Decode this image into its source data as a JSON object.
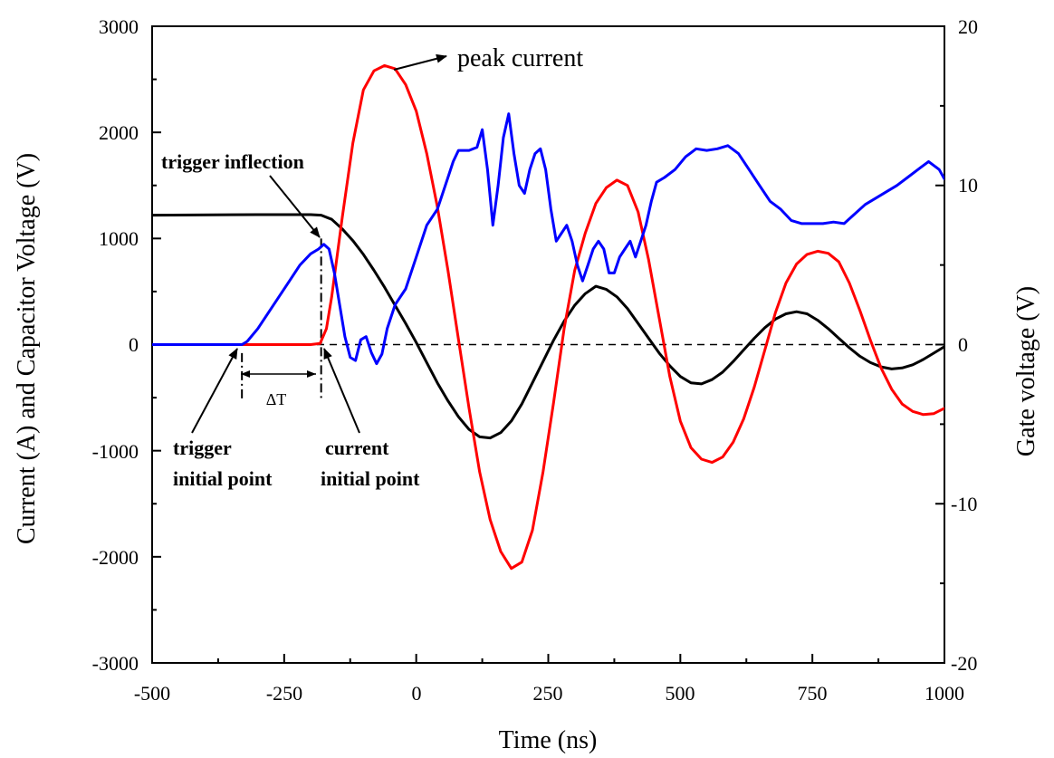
{
  "chart_data": {
    "type": "line",
    "title": "",
    "xlabel": "Time (ns)",
    "ylabel_left": "Current (A) and Capacitor Voltage (V)",
    "ylabel_right": "Gate voltage (V)",
    "xlim": [
      -500,
      1000
    ],
    "ylim_left": [
      -3000,
      3000
    ],
    "ylim_right": [
      -20,
      20
    ],
    "grid": false,
    "x_ticks": [
      -500,
      -250,
      0,
      250,
      500,
      750,
      1000
    ],
    "y_left_ticks": [
      -3000,
      -2000,
      -1000,
      0,
      1000,
      2000,
      3000
    ],
    "y_right_ticks": [
      -20,
      -10,
      0,
      10,
      20
    ],
    "tick_labels": {
      "x": [
        "-500",
        "-250",
        "0",
        "250",
        "500",
        "750",
        "1000"
      ],
      "y_left": [
        "-3000",
        "-2000",
        "-1000",
        "0",
        "1000",
        "2000",
        "3000"
      ],
      "y_right": [
        "-20",
        "-10",
        "0",
        "10",
        "20"
      ]
    },
    "series": [
      {
        "name": "Capacitor voltage",
        "axis": "left",
        "color": "#000000",
        "x": [
          -500,
          -300,
          -200,
          -180,
          -160,
          -140,
          -120,
          -100,
          -80,
          -60,
          -40,
          -20,
          0,
          20,
          40,
          60,
          80,
          100,
          120,
          140,
          160,
          180,
          200,
          220,
          240,
          260,
          280,
          300,
          320,
          340,
          360,
          380,
          400,
          420,
          440,
          460,
          480,
          500,
          520,
          540,
          560,
          580,
          600,
          620,
          640,
          660,
          680,
          700,
          720,
          740,
          760,
          780,
          800,
          820,
          840,
          860,
          880,
          900,
          920,
          940,
          960,
          980,
          1000
        ],
        "y": [
          1220,
          1225,
          1225,
          1220,
          1180,
          1090,
          980,
          850,
          700,
          540,
          370,
          200,
          20,
          -170,
          -360,
          -530,
          -680,
          -800,
          -870,
          -880,
          -830,
          -720,
          -560,
          -360,
          -160,
          40,
          220,
          370,
          480,
          550,
          520,
          450,
          340,
          200,
          60,
          -80,
          -200,
          -300,
          -360,
          -370,
          -330,
          -260,
          -160,
          -50,
          60,
          160,
          240,
          290,
          310,
          290,
          230,
          150,
          60,
          -30,
          -110,
          -170,
          -210,
          -230,
          -220,
          -190,
          -140,
          -80,
          -20
        ]
      },
      {
        "name": "Current",
        "axis": "left",
        "color": "#ff0000",
        "x": [
          -500,
          -300,
          -200,
          -182,
          -170,
          -160,
          -140,
          -120,
          -100,
          -80,
          -60,
          -40,
          -20,
          0,
          20,
          40,
          60,
          80,
          100,
          120,
          140,
          160,
          180,
          200,
          220,
          240,
          260,
          280,
          300,
          320,
          340,
          360,
          380,
          400,
          420,
          440,
          460,
          480,
          500,
          520,
          540,
          560,
          580,
          600,
          620,
          640,
          660,
          680,
          700,
          720,
          740,
          760,
          780,
          800,
          820,
          840,
          860,
          880,
          900,
          920,
          940,
          960,
          980,
          1000
        ],
        "y": [
          0,
          0,
          0,
          10,
          150,
          450,
          1200,
          1900,
          2400,
          2580,
          2630,
          2600,
          2450,
          2200,
          1800,
          1300,
          700,
          50,
          -600,
          -1200,
          -1650,
          -1950,
          -2110,
          -2050,
          -1750,
          -1200,
          -550,
          150,
          700,
          1050,
          1330,
          1480,
          1550,
          1500,
          1250,
          800,
          250,
          -300,
          -720,
          -970,
          -1080,
          -1110,
          -1060,
          -920,
          -700,
          -400,
          -50,
          300,
          580,
          760,
          850,
          880,
          860,
          780,
          580,
          320,
          40,
          -220,
          -420,
          -560,
          -630,
          -660,
          -650,
          -600
        ]
      },
      {
        "name": "Gate voltage",
        "axis": "right",
        "color": "#0000ff",
        "x": [
          -500,
          -400,
          -330,
          -320,
          -300,
          -280,
          -260,
          -240,
          -220,
          -200,
          -185,
          -175,
          -165,
          -155,
          -145,
          -135,
          -125,
          -115,
          -105,
          -95,
          -85,
          -75,
          -65,
          -55,
          -40,
          -20,
          0,
          20,
          40,
          60,
          70,
          80,
          100,
          115,
          125,
          135,
          145,
          155,
          165,
          175,
          185,
          195,
          205,
          215,
          225,
          235,
          245,
          255,
          265,
          275,
          285,
          295,
          305,
          315,
          325,
          335,
          345,
          355,
          365,
          375,
          385,
          395,
          405,
          415,
          425,
          435,
          445,
          455,
          470,
          490,
          510,
          530,
          550,
          570,
          590,
          610,
          630,
          650,
          670,
          690,
          710,
          730,
          750,
          770,
          790,
          810,
          830,
          850,
          870,
          890,
          910,
          930,
          950,
          970,
          990,
          1000
        ],
        "y": [
          0,
          0,
          0,
          0.2,
          1.0,
          2.0,
          3.0,
          4.0,
          5.0,
          5.7,
          6.0,
          6.3,
          6.0,
          4.5,
          2.5,
          0.5,
          -0.8,
          -1.0,
          0.3,
          0.5,
          -0.5,
          -1.2,
          -0.6,
          1.0,
          2.5,
          3.5,
          5.5,
          7.5,
          8.5,
          10.5,
          11.5,
          12.2,
          12.2,
          12.4,
          13.5,
          11.0,
          7.5,
          10.0,
          13.0,
          14.5,
          12.0,
          10.0,
          9.5,
          11.0,
          12.0,
          12.3,
          11.0,
          8.5,
          6.5,
          7.0,
          7.5,
          6.5,
          5.0,
          4.0,
          5.0,
          6.0,
          6.5,
          6.0,
          4.5,
          4.5,
          5.5,
          6.0,
          6.5,
          5.5,
          6.5,
          7.5,
          9.0,
          10.2,
          10.5,
          11.0,
          11.8,
          12.3,
          12.2,
          12.3,
          12.5,
          12.0,
          11.0,
          10.0,
          9.0,
          8.5,
          7.8,
          7.6,
          7.6,
          7.6,
          7.7,
          7.6,
          8.2,
          8.8,
          9.2,
          9.6,
          10.0,
          10.5,
          11.0,
          11.5,
          11.0,
          10.4
        ]
      }
    ],
    "annotations": [
      {
        "text": "peak current",
        "target_x": -40,
        "target_y": 2630
      },
      {
        "text": "trigger inflection",
        "target_x": -180,
        "target_y": 900
      },
      {
        "text": "trigger",
        "line": 1
      },
      {
        "text": "initial point",
        "line": 2
      },
      {
        "text": "current",
        "line": 1
      },
      {
        "text": "initial point",
        "line": 2
      },
      {
        "text": "ΔT",
        "from_x": -330,
        "to_x": -180
      }
    ],
    "reference_lines": [
      {
        "type": "hline",
        "y": 0,
        "style": "dashed"
      },
      {
        "type": "vline",
        "x": -330,
        "style": "dashdot"
      },
      {
        "type": "vline",
        "x": -180,
        "style": "dashdot"
      }
    ]
  }
}
